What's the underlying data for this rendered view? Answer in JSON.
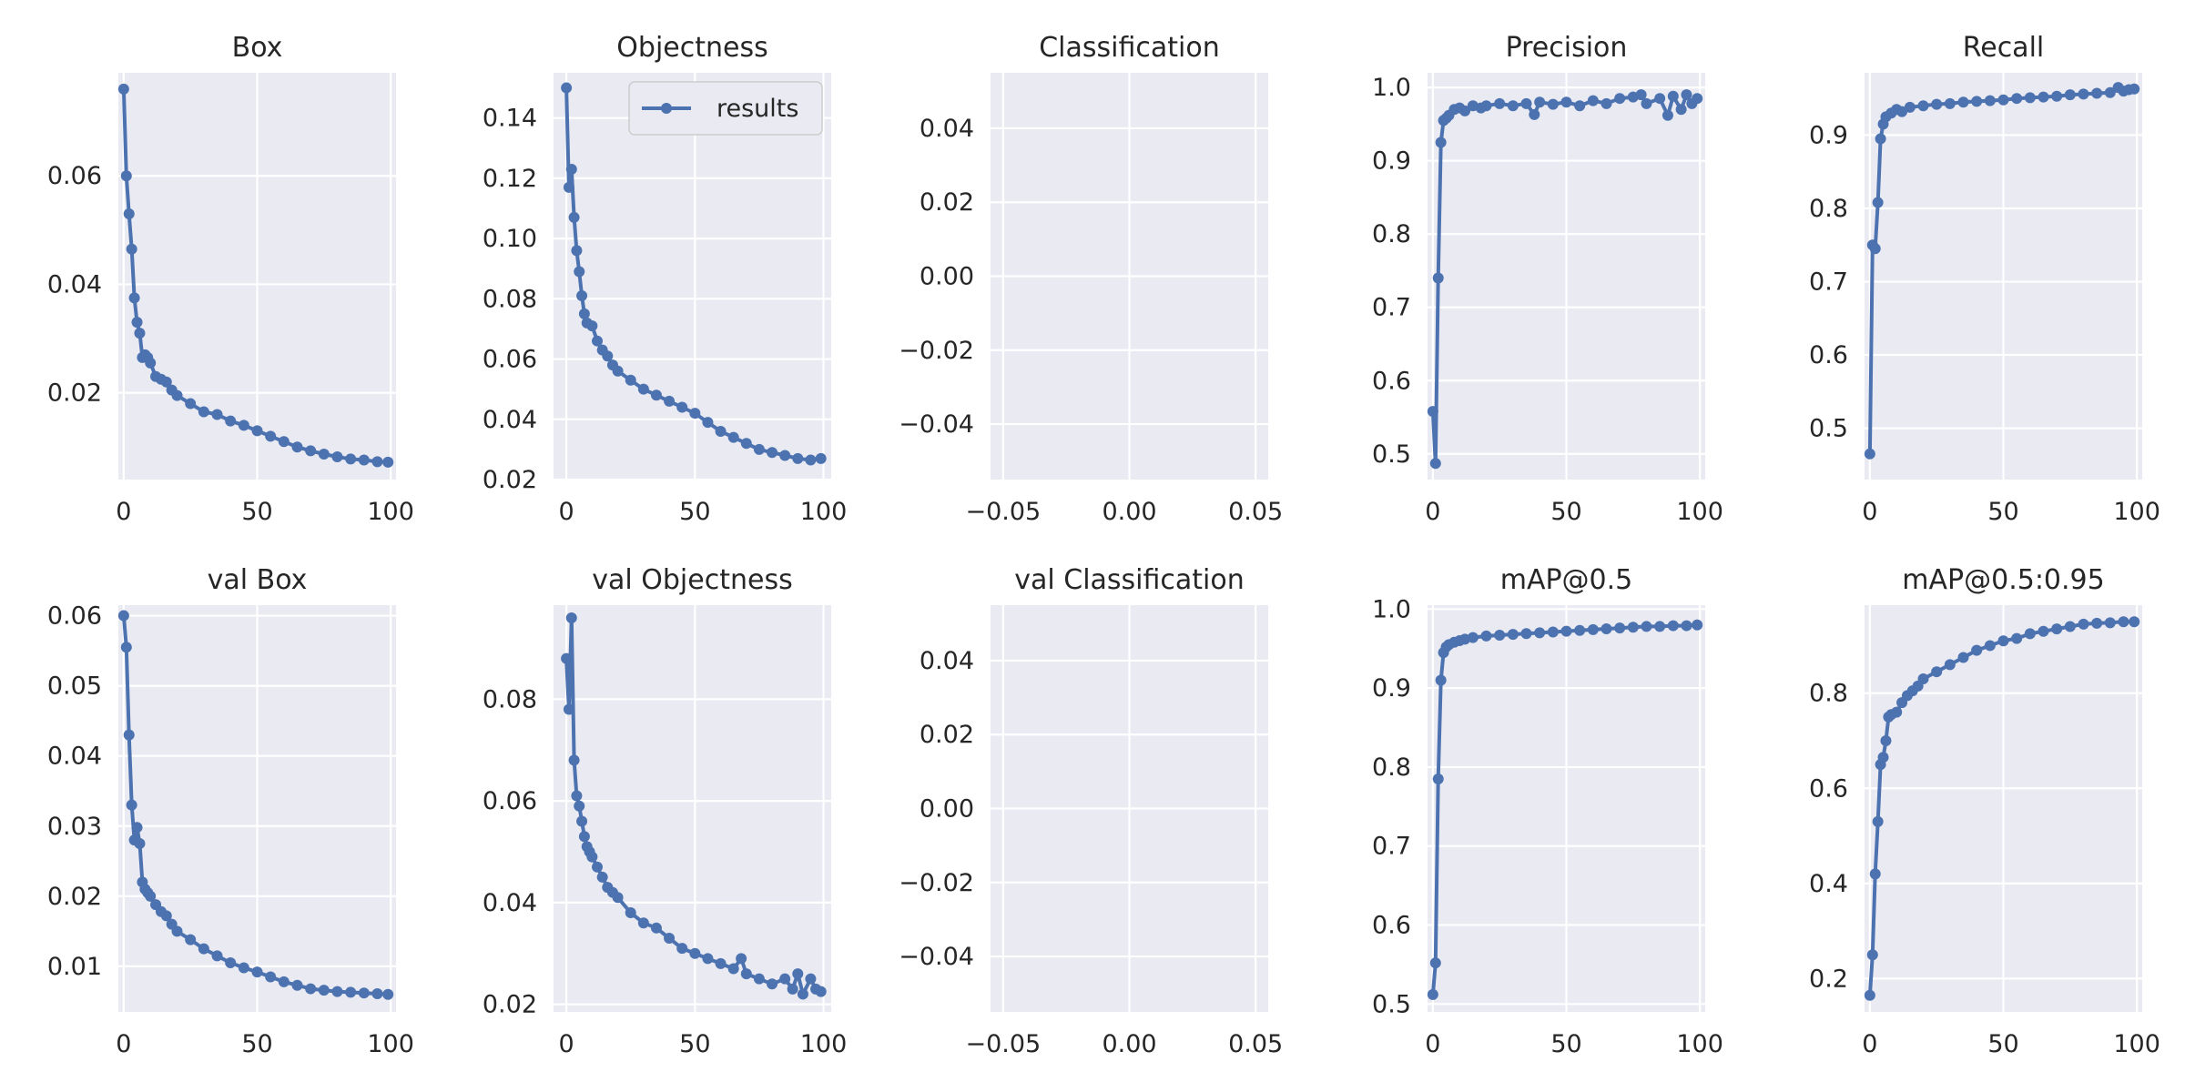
{
  "colors": {
    "panel_bg": "#eaeaf2",
    "grid": "#ffffff",
    "line": "#4c72b0",
    "text": "#262626"
  },
  "chart_data": [
    {
      "type": "line",
      "title": "Box",
      "xlim": [
        -2,
        102
      ],
      "ylim": [
        0.004,
        0.079
      ],
      "xticks": [
        0,
        50,
        100
      ],
      "xtick_labels": [
        "0",
        "50",
        "100"
      ],
      "yticks": [
        0.02,
        0.04,
        0.06
      ],
      "ytick_labels": [
        "0.02",
        "0.04",
        "0.06"
      ],
      "legend": null,
      "series": [
        {
          "x": [
            0,
            1,
            2,
            3,
            4,
            5,
            6,
            7,
            8,
            9,
            10,
            12,
            14,
            16,
            18,
            20,
            25,
            30,
            35,
            40,
            45,
            50,
            55,
            60,
            65,
            70,
            75,
            80,
            85,
            90,
            95,
            99
          ],
          "y": [
            0.076,
            0.06,
            0.053,
            0.0465,
            0.0375,
            0.033,
            0.031,
            0.0265,
            0.027,
            0.0265,
            0.0255,
            0.023,
            0.0225,
            0.022,
            0.0205,
            0.0195,
            0.018,
            0.0165,
            0.016,
            0.0148,
            0.014,
            0.013,
            0.012,
            0.011,
            0.01,
            0.0093,
            0.0087,
            0.0082,
            0.0078,
            0.0076,
            0.0073,
            0.0072
          ]
        }
      ]
    },
    {
      "type": "line",
      "title": "Objectness",
      "xlim": [
        -5,
        103
      ],
      "ylim": [
        0.02,
        0.155
      ],
      "xticks": [
        0,
        50,
        100
      ],
      "xtick_labels": [
        "0",
        "50",
        "100"
      ],
      "yticks": [
        0.02,
        0.04,
        0.06,
        0.08,
        0.1,
        0.12,
        0.14
      ],
      "ytick_labels": [
        "0.02",
        "0.04",
        "0.06",
        "0.08",
        "0.10",
        "0.12",
        "0.14"
      ],
      "legend": {
        "label": "results",
        "loc": "upper right"
      },
      "series": [
        {
          "x": [
            0,
            1,
            2,
            3,
            4,
            5,
            6,
            7,
            8,
            10,
            12,
            14,
            16,
            18,
            20,
            25,
            30,
            35,
            40,
            45,
            50,
            55,
            60,
            65,
            70,
            75,
            80,
            85,
            90,
            95,
            99
          ],
          "y": [
            0.15,
            0.117,
            0.123,
            0.107,
            0.096,
            0.089,
            0.081,
            0.075,
            0.072,
            0.071,
            0.066,
            0.063,
            0.061,
            0.058,
            0.056,
            0.053,
            0.05,
            0.048,
            0.046,
            0.044,
            0.042,
            0.039,
            0.036,
            0.034,
            0.032,
            0.03,
            0.029,
            0.028,
            0.027,
            0.0265,
            0.027
          ]
        }
      ]
    },
    {
      "type": "line",
      "title": "Classification",
      "xlim": [
        -0.055,
        0.055
      ],
      "ylim": [
        -0.055,
        0.055
      ],
      "xticks": [
        -0.05,
        0,
        0.05
      ],
      "xtick_labels": [
        "−0.05",
        "0.00",
        "0.05"
      ],
      "yticks": [
        -0.04,
        -0.02,
        0,
        0.02,
        0.04
      ],
      "ytick_labels": [
        "−0.04",
        "−0.02",
        "0.00",
        "0.02",
        "0.04"
      ],
      "legend": null,
      "series": []
    },
    {
      "type": "line",
      "title": "Precision",
      "xlim": [
        -2,
        102
      ],
      "ylim": [
        0.465,
        1.02
      ],
      "xticks": [
        0,
        50,
        100
      ],
      "xtick_labels": [
        "0",
        "50",
        "100"
      ],
      "yticks": [
        0.5,
        0.6,
        0.7,
        0.8,
        0.9,
        1.0
      ],
      "ytick_labels": [
        "0.5",
        "0.6",
        "0.7",
        "0.8",
        "0.9",
        "1.0"
      ],
      "legend": null,
      "series": [
        {
          "x": [
            0,
            1,
            2,
            3,
            4,
            5,
            6,
            8,
            10,
            12,
            15,
            18,
            20,
            25,
            30,
            35,
            38,
            40,
            45,
            50,
            55,
            60,
            65,
            70,
            75,
            78,
            80,
            85,
            88,
            90,
            93,
            95,
            97,
            99
          ],
          "y": [
            0.558,
            0.487,
            0.74,
            0.925,
            0.955,
            0.958,
            0.962,
            0.97,
            0.972,
            0.968,
            0.975,
            0.972,
            0.975,
            0.978,
            0.975,
            0.978,
            0.963,
            0.98,
            0.977,
            0.98,
            0.975,
            0.982,
            0.978,
            0.985,
            0.987,
            0.99,
            0.978,
            0.985,
            0.962,
            0.988,
            0.97,
            0.99,
            0.978,
            0.985
          ]
        }
      ]
    },
    {
      "type": "line",
      "title": "Recall",
      "xlim": [
        -2,
        102
      ],
      "ylim": [
        0.43,
        0.985
      ],
      "xticks": [
        0,
        50,
        100
      ],
      "xtick_labels": [
        "0",
        "50",
        "100"
      ],
      "yticks": [
        0.5,
        0.6,
        0.7,
        0.8,
        0.9
      ],
      "ytick_labels": [
        "0.5",
        "0.6",
        "0.7",
        "0.8",
        "0.9"
      ],
      "legend": null,
      "series": [
        {
          "x": [
            0,
            1,
            2,
            3,
            4,
            5,
            6,
            8,
            10,
            12,
            15,
            20,
            25,
            30,
            35,
            40,
            45,
            50,
            55,
            60,
            65,
            70,
            75,
            80,
            85,
            90,
            93,
            95,
            97,
            99
          ],
          "y": [
            0.465,
            0.75,
            0.745,
            0.808,
            0.895,
            0.915,
            0.925,
            0.93,
            0.935,
            0.932,
            0.938,
            0.94,
            0.942,
            0.943,
            0.945,
            0.946,
            0.947,
            0.948,
            0.95,
            0.951,
            0.952,
            0.953,
            0.955,
            0.956,
            0.957,
            0.958,
            0.965,
            0.96,
            0.962,
            0.963
          ]
        }
      ]
    },
    {
      "type": "line",
      "title": "val Box",
      "xlim": [
        -2,
        102
      ],
      "ylim": [
        0.0035,
        0.0615
      ],
      "xticks": [
        0,
        50,
        100
      ],
      "xtick_labels": [
        "0",
        "50",
        "100"
      ],
      "yticks": [
        0.01,
        0.02,
        0.03,
        0.04,
        0.05,
        0.06
      ],
      "ytick_labels": [
        "0.01",
        "0.02",
        "0.03",
        "0.04",
        "0.05",
        "0.06"
      ],
      "legend": null,
      "series": [
        {
          "x": [
            0,
            1,
            2,
            3,
            4,
            5,
            6,
            7,
            8,
            9,
            10,
            12,
            14,
            16,
            18,
            20,
            25,
            30,
            35,
            40,
            45,
            50,
            55,
            60,
            65,
            70,
            75,
            80,
            85,
            90,
            95,
            99
          ],
          "y": [
            0.06,
            0.0555,
            0.043,
            0.033,
            0.028,
            0.0298,
            0.0275,
            0.022,
            0.021,
            0.0205,
            0.02,
            0.0188,
            0.0178,
            0.0172,
            0.016,
            0.015,
            0.0138,
            0.0125,
            0.0115,
            0.0105,
            0.0098,
            0.0092,
            0.0085,
            0.0078,
            0.0073,
            0.0068,
            0.0066,
            0.0064,
            0.0063,
            0.0062,
            0.0061,
            0.006
          ]
        }
      ]
    },
    {
      "type": "line",
      "title": "val Objectness",
      "xlim": [
        -5,
        103
      ],
      "ylim": [
        0.0185,
        0.0985
      ],
      "xticks": [
        0,
        50,
        100
      ],
      "xtick_labels": [
        "0",
        "50",
        "100"
      ],
      "yticks": [
        0.02,
        0.04,
        0.06,
        0.08
      ],
      "ytick_labels": [
        "0.02",
        "0.04",
        "0.06",
        "0.08"
      ],
      "legend": null,
      "series": [
        {
          "x": [
            0,
            1,
            2,
            3,
            4,
            5,
            6,
            7,
            8,
            9,
            10,
            12,
            14,
            16,
            18,
            20,
            25,
            30,
            35,
            40,
            45,
            50,
            55,
            60,
            65,
            68,
            70,
            75,
            80,
            85,
            88,
            90,
            92,
            95,
            97,
            99
          ],
          "y": [
            0.088,
            0.078,
            0.096,
            0.068,
            0.061,
            0.059,
            0.056,
            0.053,
            0.051,
            0.05,
            0.049,
            0.047,
            0.045,
            0.043,
            0.042,
            0.041,
            0.038,
            0.036,
            0.035,
            0.033,
            0.031,
            0.03,
            0.029,
            0.028,
            0.027,
            0.029,
            0.026,
            0.025,
            0.024,
            0.025,
            0.023,
            0.026,
            0.022,
            0.025,
            0.023,
            0.0225
          ]
        }
      ]
    },
    {
      "type": "line",
      "title": "val Classification",
      "xlim": [
        -0.055,
        0.055
      ],
      "ylim": [
        -0.055,
        0.055
      ],
      "xticks": [
        -0.05,
        0,
        0.05
      ],
      "xtick_labels": [
        "−0.05",
        "0.00",
        "0.05"
      ],
      "yticks": [
        -0.04,
        -0.02,
        0,
        0.02,
        0.04
      ],
      "ytick_labels": [
        "−0.04",
        "−0.02",
        "0.00",
        "0.02",
        "0.04"
      ],
      "legend": null,
      "series": []
    },
    {
      "type": "line",
      "title": "mAP@0.5",
      "xlim": [
        -2,
        102
      ],
      "ylim": [
        0.49,
        1.005
      ],
      "xticks": [
        0,
        50,
        100
      ],
      "xtick_labels": [
        "0",
        "50",
        "100"
      ],
      "yticks": [
        0.5,
        0.6,
        0.7,
        0.8,
        0.9,
        1.0
      ],
      "ytick_labels": [
        "0.5",
        "0.6",
        "0.7",
        "0.8",
        "0.9",
        "1.0"
      ],
      "legend": null,
      "series": [
        {
          "x": [
            0,
            1,
            2,
            3,
            4,
            5,
            6,
            8,
            10,
            12,
            15,
            20,
            25,
            30,
            35,
            40,
            45,
            50,
            55,
            60,
            65,
            70,
            75,
            80,
            85,
            90,
            95,
            99
          ],
          "y": [
            0.512,
            0.552,
            0.785,
            0.91,
            0.945,
            0.952,
            0.955,
            0.958,
            0.96,
            0.962,
            0.964,
            0.966,
            0.967,
            0.968,
            0.969,
            0.97,
            0.971,
            0.972,
            0.973,
            0.974,
            0.975,
            0.976,
            0.977,
            0.978,
            0.978,
            0.979,
            0.979,
            0.98
          ]
        }
      ]
    },
    {
      "type": "line",
      "title": "mAP@0.5:0.95",
      "xlim": [
        -2,
        102
      ],
      "ylim": [
        0.13,
        0.985
      ],
      "xticks": [
        0,
        50,
        100
      ],
      "xtick_labels": [
        "0",
        "50",
        "100"
      ],
      "yticks": [
        0.2,
        0.4,
        0.6,
        0.8
      ],
      "ytick_labels": [
        "0.2",
        "0.4",
        "0.6",
        "0.8"
      ],
      "legend": null,
      "series": [
        {
          "x": [
            0,
            1,
            2,
            3,
            4,
            5,
            6,
            7,
            8,
            10,
            12,
            14,
            16,
            18,
            20,
            25,
            30,
            35,
            40,
            45,
            50,
            55,
            60,
            65,
            70,
            75,
            80,
            85,
            90,
            95,
            99
          ],
          "y": [
            0.165,
            0.25,
            0.42,
            0.53,
            0.65,
            0.665,
            0.7,
            0.75,
            0.755,
            0.76,
            0.78,
            0.795,
            0.805,
            0.815,
            0.83,
            0.845,
            0.86,
            0.875,
            0.89,
            0.9,
            0.91,
            0.915,
            0.925,
            0.93,
            0.935,
            0.94,
            0.945,
            0.947,
            0.948,
            0.95,
            0.95
          ]
        }
      ]
    }
  ]
}
